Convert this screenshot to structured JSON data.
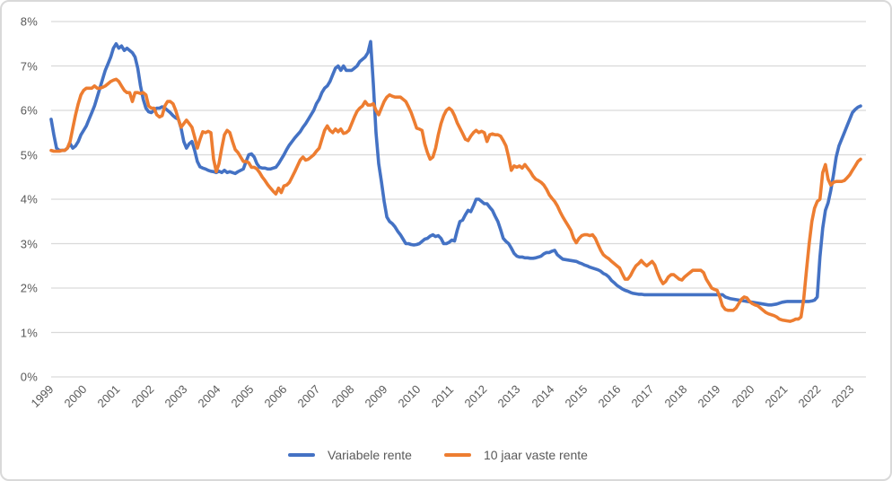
{
  "chart": {
    "background": "#ffffff",
    "border_color": "#d9d9d9",
    "gridline_color": "#d9d9d9",
    "axis_label_color": "#595959",
    "y_tick_labels": [
      "0%",
      "1%",
      "2%",
      "3%",
      "4%",
      "5%",
      "6%",
      "7%",
      "8%"
    ],
    "x_tick_labels": [
      "1999",
      "2000",
      "2001",
      "2002",
      "2003",
      "2004",
      "2005",
      "2006",
      "2007",
      "2008",
      "2009",
      "2010",
      "2011",
      "2012",
      "2013",
      "2014",
      "2015",
      "2016",
      "2017",
      "2018",
      "2019",
      "2020",
      "2021",
      "2022",
      "2023"
    ]
  },
  "chart_data": {
    "type": "line",
    "title": "",
    "xlabel": "",
    "ylabel": "",
    "ylim": [
      0,
      8
    ],
    "y_tick_step": 1,
    "y_format": "percent",
    "grid": "horizontal",
    "legend_position": "bottom-center",
    "x_start": "1999-01",
    "x_end": "2023-12",
    "frequency": "monthly",
    "x_tick_labels": [
      "1999",
      "2000",
      "2001",
      "2002",
      "2003",
      "2004",
      "2005",
      "2006",
      "2007",
      "2008",
      "2009",
      "2010",
      "2011",
      "2012",
      "2013",
      "2014",
      "2015",
      "2016",
      "2017",
      "2018",
      "2019",
      "2020",
      "2021",
      "2022",
      "2023"
    ],
    "series": [
      {
        "name": "Variabele rente",
        "color": "#4472C4",
        "values": [
          5.8,
          5.45,
          5.15,
          5.1,
          5.1,
          5.1,
          5.15,
          5.25,
          5.15,
          5.2,
          5.3,
          5.45,
          5.55,
          5.65,
          5.8,
          5.95,
          6.1,
          6.3,
          6.5,
          6.7,
          6.9,
          7.05,
          7.2,
          7.4,
          7.5,
          7.4,
          7.45,
          7.35,
          7.4,
          7.35,
          7.3,
          7.2,
          6.95,
          6.55,
          6.25,
          6.05,
          5.97,
          5.95,
          6.0,
          6.05,
          6.05,
          6.08,
          6.05,
          6.0,
          5.95,
          5.88,
          5.83,
          5.8,
          5.6,
          5.3,
          5.15,
          5.25,
          5.3,
          5.1,
          4.85,
          4.73,
          4.7,
          4.68,
          4.65,
          4.63,
          4.62,
          4.6,
          4.63,
          4.6,
          4.65,
          4.6,
          4.62,
          4.6,
          4.58,
          4.62,
          4.65,
          4.68,
          4.85,
          5.0,
          5.02,
          4.95,
          4.8,
          4.72,
          4.7,
          4.7,
          4.68,
          4.68,
          4.7,
          4.72,
          4.8,
          4.9,
          5.0,
          5.12,
          5.22,
          5.3,
          5.38,
          5.45,
          5.52,
          5.62,
          5.7,
          5.8,
          5.9,
          6.0,
          6.15,
          6.25,
          6.4,
          6.5,
          6.55,
          6.65,
          6.8,
          6.95,
          7.0,
          6.9,
          7.0,
          6.9,
          6.9,
          6.9,
          6.95,
          7.0,
          7.1,
          7.15,
          7.2,
          7.3,
          7.55,
          6.6,
          5.5,
          4.8,
          4.4,
          3.95,
          3.6,
          3.5,
          3.45,
          3.38,
          3.28,
          3.2,
          3.1,
          3.0,
          3.0,
          2.98,
          2.97,
          2.98,
          3.0,
          3.05,
          3.1,
          3.12,
          3.17,
          3.2,
          3.16,
          3.18,
          3.12,
          3.0,
          3.0,
          3.03,
          3.08,
          3.06,
          3.3,
          3.5,
          3.53,
          3.65,
          3.75,
          3.72,
          3.85,
          4.0,
          4.0,
          3.95,
          3.9,
          3.9,
          3.82,
          3.75,
          3.62,
          3.5,
          3.32,
          3.12,
          3.05,
          3.0,
          2.9,
          2.78,
          2.72,
          2.7,
          2.7,
          2.68,
          2.68,
          2.67,
          2.67,
          2.68,
          2.7,
          2.72,
          2.77,
          2.8,
          2.8,
          2.83,
          2.85,
          2.75,
          2.7,
          2.65,
          2.64,
          2.63,
          2.62,
          2.61,
          2.6,
          2.57,
          2.55,
          2.52,
          2.5,
          2.47,
          2.45,
          2.43,
          2.41,
          2.38,
          2.33,
          2.3,
          2.25,
          2.17,
          2.12,
          2.06,
          2.02,
          1.98,
          1.95,
          1.93,
          1.9,
          1.88,
          1.87,
          1.86,
          1.86,
          1.85,
          1.85,
          1.85,
          1.85,
          1.85,
          1.85,
          1.85,
          1.85,
          1.85,
          1.85,
          1.85,
          1.85,
          1.85,
          1.85,
          1.85,
          1.85,
          1.85,
          1.85,
          1.85,
          1.85,
          1.85,
          1.85,
          1.85,
          1.85,
          1.85,
          1.85,
          1.85,
          1.85,
          1.85,
          1.85,
          1.8,
          1.78,
          1.76,
          1.75,
          1.74,
          1.73,
          1.72,
          1.71,
          1.7,
          1.69,
          1.68,
          1.67,
          1.66,
          1.65,
          1.64,
          1.63,
          1.62,
          1.62,
          1.63,
          1.64,
          1.66,
          1.68,
          1.69,
          1.7,
          1.7,
          1.7,
          1.7,
          1.7,
          1.7,
          1.7,
          1.7,
          1.7,
          1.71,
          1.73,
          1.8,
          2.7,
          3.35,
          3.75,
          3.92,
          4.2,
          4.55,
          4.95,
          5.2,
          5.35,
          5.5,
          5.65,
          5.8,
          5.95,
          6.02,
          6.07,
          6.1
        ]
      },
      {
        "name": "10 jaar vaste rente",
        "color": "#ED7D31",
        "values": [
          5.1,
          5.08,
          5.08,
          5.08,
          5.1,
          5.1,
          5.15,
          5.3,
          5.6,
          5.9,
          6.15,
          6.35,
          6.45,
          6.5,
          6.5,
          6.5,
          6.55,
          6.5,
          6.5,
          6.52,
          6.55,
          6.6,
          6.65,
          6.68,
          6.7,
          6.65,
          6.55,
          6.45,
          6.4,
          6.4,
          6.2,
          6.4,
          6.4,
          6.38,
          6.4,
          6.35,
          6.1,
          6.05,
          6.05,
          5.9,
          5.85,
          5.88,
          6.1,
          6.2,
          6.2,
          6.15,
          6.0,
          5.8,
          5.62,
          5.7,
          5.78,
          5.7,
          5.62,
          5.4,
          5.15,
          5.35,
          5.52,
          5.5,
          5.53,
          5.5,
          4.9,
          4.62,
          4.8,
          5.15,
          5.45,
          5.55,
          5.5,
          5.3,
          5.12,
          5.05,
          4.95,
          4.85,
          4.85,
          4.82,
          4.72,
          4.72,
          4.68,
          4.6,
          4.5,
          4.42,
          4.33,
          4.25,
          4.18,
          4.12,
          4.25,
          4.15,
          4.3,
          4.32,
          4.38,
          4.5,
          4.62,
          4.75,
          4.88,
          4.95,
          4.88,
          4.9,
          4.95,
          5.0,
          5.08,
          5.15,
          5.35,
          5.55,
          5.65,
          5.55,
          5.5,
          5.58,
          5.52,
          5.58,
          5.48,
          5.5,
          5.55,
          5.7,
          5.85,
          5.98,
          6.05,
          6.1,
          6.2,
          6.12,
          6.12,
          6.15,
          6.0,
          5.9,
          6.05,
          6.2,
          6.3,
          6.35,
          6.32,
          6.3,
          6.3,
          6.3,
          6.25,
          6.2,
          6.08,
          5.95,
          5.78,
          5.6,
          5.58,
          5.55,
          5.25,
          5.05,
          4.9,
          4.95,
          5.15,
          5.45,
          5.7,
          5.88,
          6.0,
          6.05,
          6.0,
          5.88,
          5.72,
          5.6,
          5.48,
          5.35,
          5.32,
          5.42,
          5.5,
          5.55,
          5.5,
          5.53,
          5.5,
          5.3,
          5.45,
          5.47,
          5.45,
          5.45,
          5.42,
          5.32,
          5.2,
          4.95,
          4.65,
          4.75,
          4.72,
          4.75,
          4.7,
          4.78,
          4.7,
          4.62,
          4.52,
          4.45,
          4.42,
          4.38,
          4.32,
          4.22,
          4.1,
          4.02,
          3.95,
          3.85,
          3.72,
          3.6,
          3.5,
          3.4,
          3.3,
          3.12,
          3.02,
          3.12,
          3.18,
          3.2,
          3.2,
          3.18,
          3.2,
          3.12,
          2.98,
          2.85,
          2.75,
          2.7,
          2.66,
          2.6,
          2.55,
          2.5,
          2.45,
          2.32,
          2.2,
          2.2,
          2.28,
          2.4,
          2.5,
          2.55,
          2.62,
          2.55,
          2.5,
          2.55,
          2.6,
          2.52,
          2.35,
          2.2,
          2.1,
          2.15,
          2.25,
          2.3,
          2.3,
          2.25,
          2.2,
          2.18,
          2.25,
          2.3,
          2.35,
          2.4,
          2.4,
          2.4,
          2.4,
          2.35,
          2.2,
          2.1,
          2.0,
          1.97,
          1.95,
          1.8,
          1.6,
          1.52,
          1.5,
          1.5,
          1.5,
          1.55,
          1.65,
          1.75,
          1.8,
          1.78,
          1.7,
          1.65,
          1.62,
          1.6,
          1.55,
          1.5,
          1.45,
          1.42,
          1.4,
          1.38,
          1.35,
          1.3,
          1.28,
          1.27,
          1.26,
          1.25,
          1.27,
          1.3,
          1.3,
          1.35,
          1.75,
          2.4,
          3.0,
          3.5,
          3.8,
          3.95,
          4.0,
          4.6,
          4.78,
          4.45,
          4.32,
          4.38,
          4.4,
          4.4,
          4.4,
          4.42,
          4.48,
          4.55,
          4.65,
          4.75,
          4.85,
          4.9
        ]
      }
    ]
  }
}
